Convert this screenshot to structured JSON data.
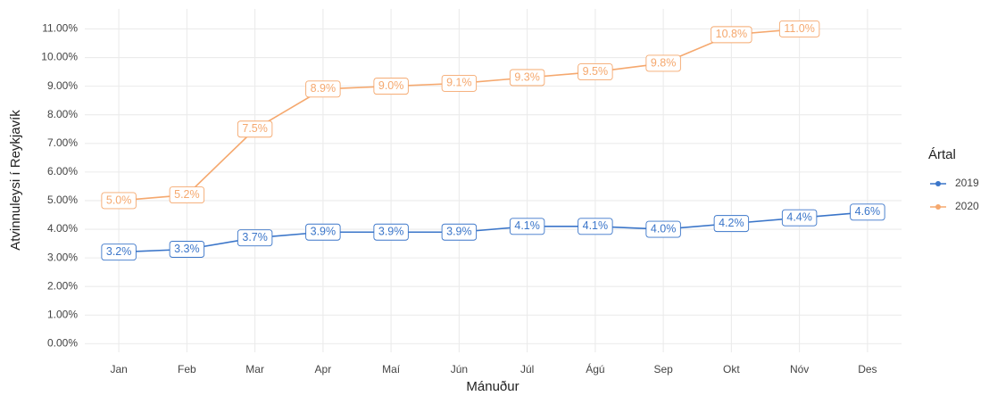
{
  "chart_data": {
    "type": "line",
    "x_label": "Mánuður",
    "y_label": "Atvinnuleysi í Reykjavík",
    "legend_title": "Ártal",
    "legend": "right",
    "grid": true,
    "categories": [
      "Jan",
      "Feb",
      "Mar",
      "Apr",
      "Maí",
      "Jún",
      "Júl",
      "Ágú",
      "Sep",
      "Okt",
      "Nóv",
      "Des"
    ],
    "series": [
      {
        "name": "2019",
        "color": "#3a75c9",
        "values": [
          3.2,
          3.3,
          3.7,
          3.9,
          3.9,
          3.9,
          4.1,
          4.1,
          4.0,
          4.2,
          4.4,
          4.6
        ],
        "value_labels": [
          "3.2%",
          "3.3%",
          "3.7%",
          "3.9%",
          "3.9%",
          "3.9%",
          "4.1%",
          "4.1%",
          "4.0%",
          "4.2%",
          "4.4%",
          "4.6%"
        ]
      },
      {
        "name": "2020",
        "color": "#f5a86e",
        "values": [
          5.0,
          5.2,
          7.5,
          8.9,
          9.0,
          9.1,
          9.3,
          9.5,
          9.8,
          10.8,
          11.0,
          null
        ],
        "value_labels": [
          "5.0%",
          "5.2%",
          "7.5%",
          "8.9%",
          "9.0%",
          "9.1%",
          "9.3%",
          "9.5%",
          "9.8%",
          "10.8%",
          "11.0%",
          null
        ]
      }
    ],
    "ylim": [
      -0.3,
      11.7
    ],
    "yticks": [
      {
        "value": 0,
        "label": "0.00%"
      },
      {
        "value": 1,
        "label": "1.00%"
      },
      {
        "value": 2,
        "label": "2.00%"
      },
      {
        "value": 3,
        "label": "3.00%"
      },
      {
        "value": 4,
        "label": "4.00%"
      },
      {
        "value": 5,
        "label": "5.00%"
      },
      {
        "value": 6,
        "label": "6.00%"
      },
      {
        "value": 7,
        "label": "7.00%"
      },
      {
        "value": 8,
        "label": "8.00%"
      },
      {
        "value": 9,
        "label": "9.00%"
      },
      {
        "value": 10,
        "label": "10.00%"
      },
      {
        "value": 11,
        "label": "11.00%"
      }
    ]
  }
}
